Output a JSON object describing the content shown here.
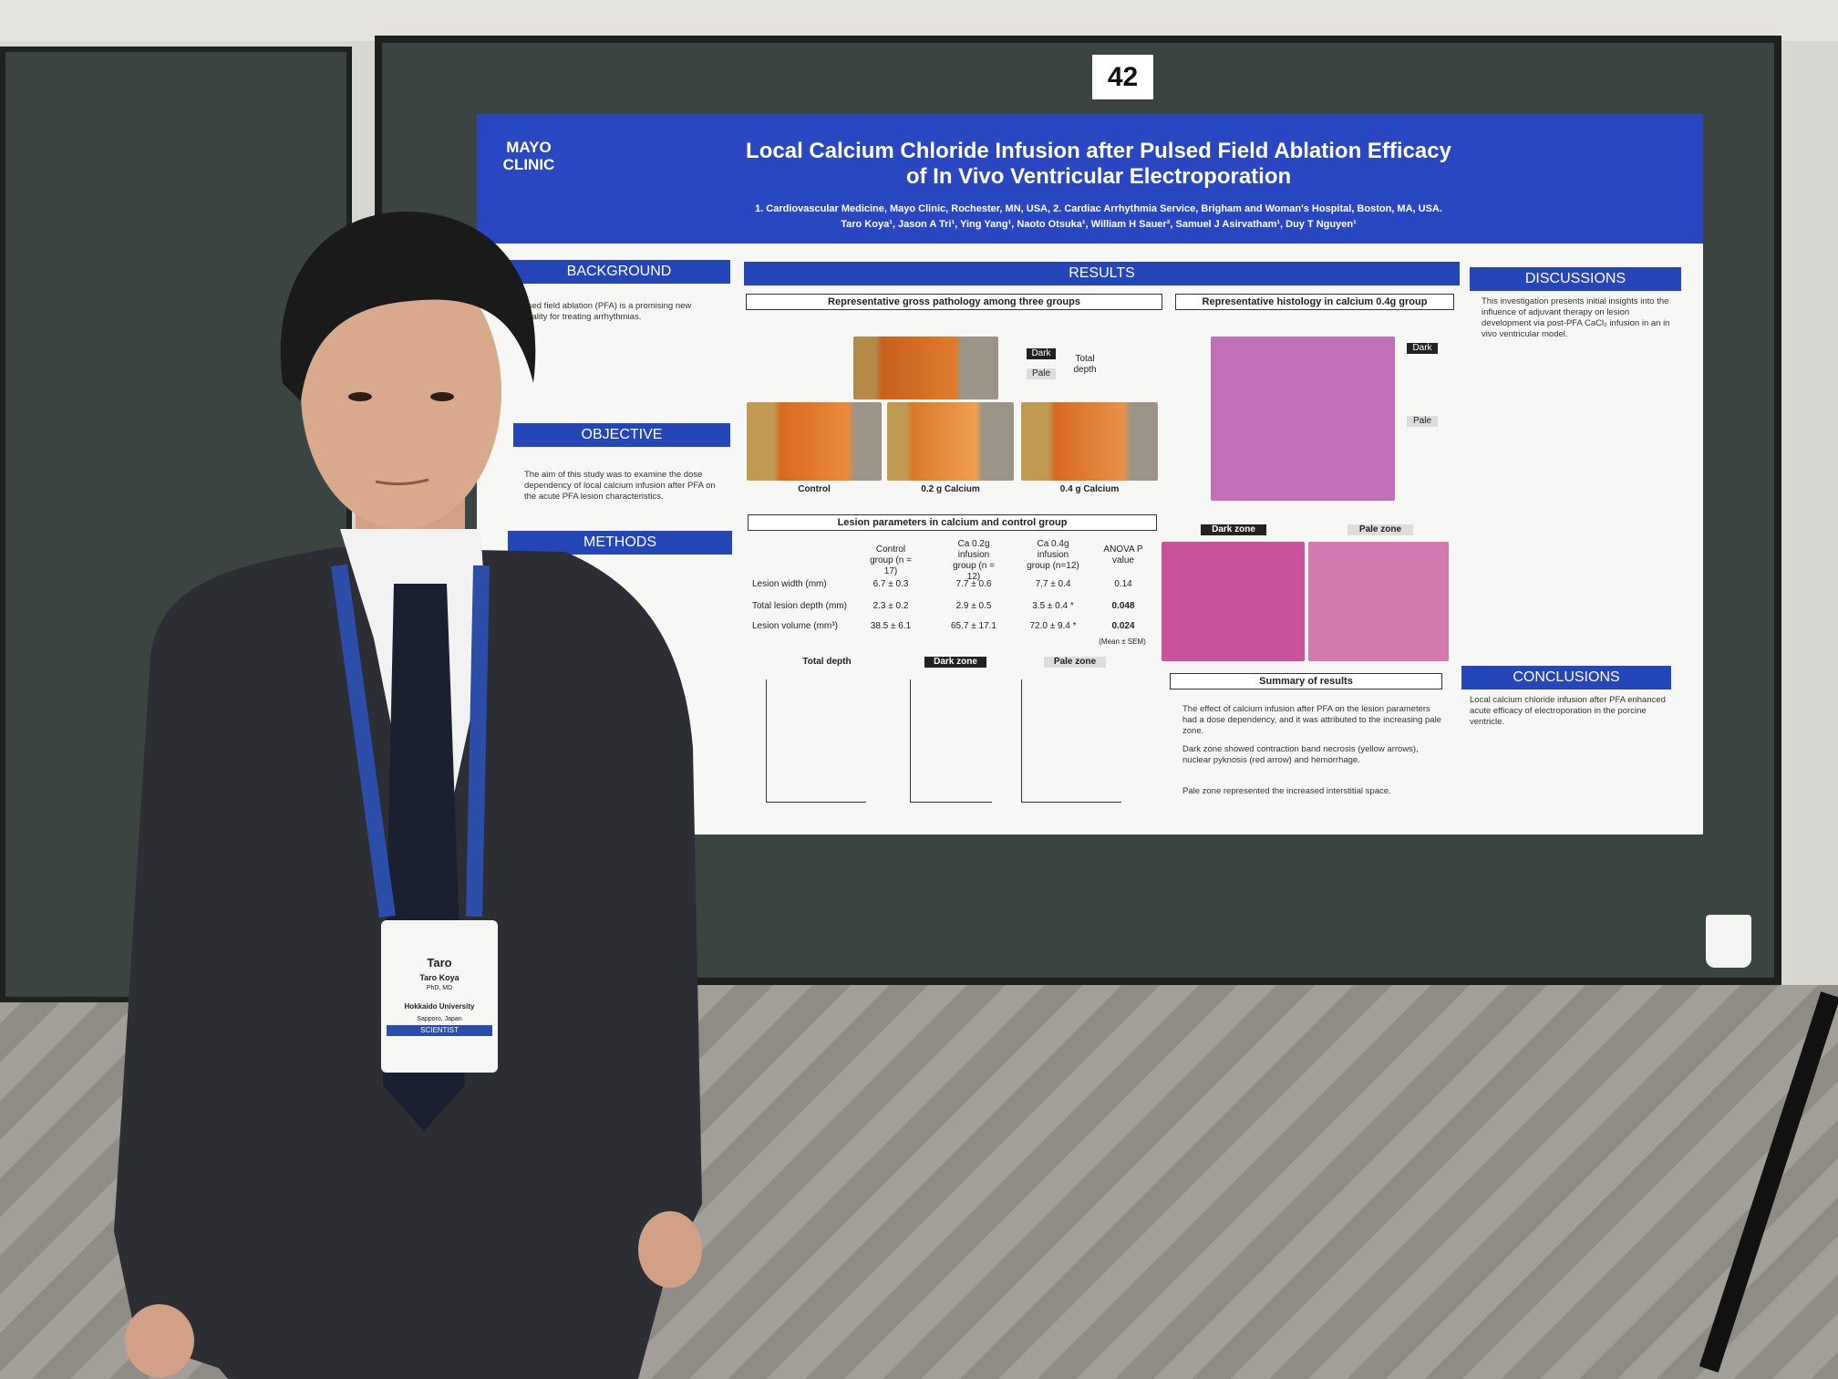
{
  "board_number": "42",
  "poster": {
    "logo": "MAYO CLINIC",
    "title": [
      "Local Calcium Chloride Infusion after Pulsed Field Ablation Efficacy",
      "of In Vivo Ventricular Electroporation"
    ],
    "affiliations": "1. Cardiovascular Medicine, Mayo Clinic, Rochester, MN, USA, 2. Cardiac Arrhythmia Service, Brigham and Woman's Hospital, Boston, MA, USA.",
    "authors": "Taro Koya¹, Jason A Tri¹, Ying Yang¹, Naoto Otsuka¹, William H Sauer², Samuel J Asirvatham¹, Duy T Nguyen¹",
    "sections": {
      "background": "BACKGROUND",
      "objective": "OBJECTIVE",
      "methods": "METHODS",
      "results": "RESULTS",
      "discussions": "DISCUSSIONS",
      "conclusions": "CONCLUSIONS"
    },
    "background_text": "Pulsed field ablation (PFA) is a promising new modality for treating arrhythmias.",
    "objective_text": "The aim of this study was to examine the dose dependency of local calcium infusion after PFA on the acute PFA lesion characteristics.",
    "gross": {
      "heading": "Representative gross pathology among three groups",
      "dark": "Dark",
      "pale": "Pale",
      "total": "Total depth",
      "labels": [
        "Control",
        "0.2 g Calcium",
        "0.4 g Calcium"
      ]
    },
    "histology": {
      "heading": "Representative histology in calcium 0.4g group",
      "dark": "Dark",
      "pale": "Pale",
      "dark_zone": "Dark zone",
      "pale_zone": "Pale zone"
    },
    "table": {
      "heading": "Lesion parameters in calcium and control group",
      "columns": [
        "Control group (n = 17)",
        "Ca 0.2g infusion group (n = 12)",
        "Ca 0.4g infusion group (n=12)",
        "ANOVA P value"
      ],
      "rows": [
        [
          "Lesion width (mm)",
          "6.7 ± 0.3",
          "7.7 ± 0.6",
          "7.7 ± 0.4",
          "0.14"
        ],
        [
          "Total lesion depth (mm)",
          "2.3 ± 0.2",
          "2.9 ± 0.5",
          "3.5 ± 0.4 *",
          "0.048"
        ],
        [
          "Lesion volume (mm³)",
          "38.5 ± 6.1",
          "65.7 ± 17.1",
          "72.0 ± 9.4 *",
          "0.024"
        ]
      ],
      "note": "(Mean ± SEM)"
    },
    "charts": [
      "Total depth",
      "Dark zone",
      "Pale zone"
    ],
    "summary_heading": "Summary of results",
    "summary": [
      "The effect of calcium infusion after PFA on the lesion parameters had a dose dependency, and it was attributed to the increasing pale zone.",
      "Dark zone showed contraction band necrosis (yellow arrows), nuclear pyknosis (red arrow) and hemorrhage.",
      "Pale zone represented the increased interstitial space."
    ],
    "discussions_text": "This investigation presents initial insights into the influence of adjuvant therapy on lesion development via post-PFA CaCl₂ infusion in an in vivo ventricular model.",
    "conclusions_text": "Local calcium chloride infusion after PFA enhanced acute efficacy of electroporation in the porcine ventricle."
  },
  "badge": {
    "first": "Taro",
    "name": "Taro Koya",
    "degree": "PhD, MD",
    "org": "Hokkaido University",
    "city": "Sapporo, Japan",
    "role": "SCIENTIST"
  }
}
